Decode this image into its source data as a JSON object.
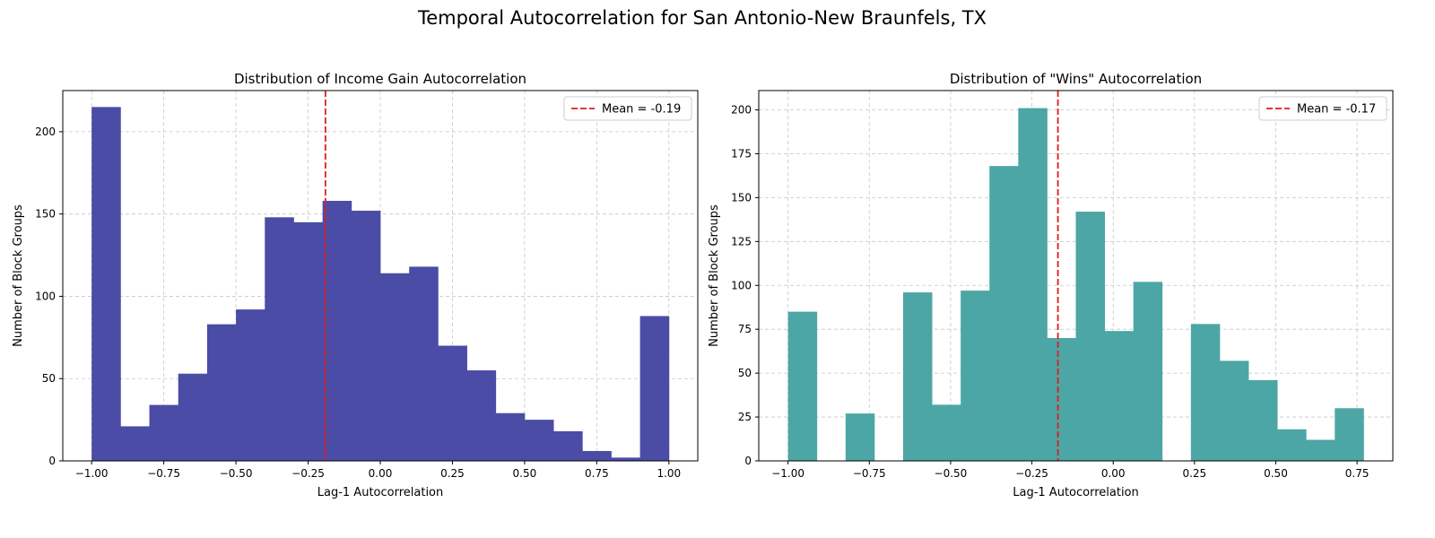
{
  "figure": {
    "suptitle": "Temporal Autocorrelation for San Antonio-New Braunfels, TX"
  },
  "chart_data": [
    {
      "type": "histogram",
      "title": "Distribution of Income Gain Autocorrelation",
      "xlabel": "Lag-1 Autocorrelation",
      "ylabel": "Number of Block Groups",
      "xlim": [
        -1.1,
        1.1
      ],
      "ylim": [
        0,
        225
      ],
      "xticks": [
        -1.0,
        -0.75,
        -0.5,
        -0.25,
        0.0,
        0.25,
        0.5,
        0.75,
        1.0
      ],
      "xtick_labels": [
        "−1.00",
        "−0.75",
        "−0.50",
        "−0.25",
        "0.00",
        "0.25",
        "0.50",
        "0.75",
        "1.00"
      ],
      "yticks": [
        0,
        50,
        100,
        150,
        200
      ],
      "ytick_labels": [
        "0",
        "50",
        "100",
        "150",
        "200"
      ],
      "bin_edges": [
        -1.0,
        -0.9,
        -0.8,
        -0.7,
        -0.6,
        -0.5,
        -0.4,
        -0.3,
        -0.2,
        -0.1,
        0.0,
        0.1,
        0.2,
        0.3,
        0.4,
        0.5,
        0.6,
        0.7,
        0.8,
        0.9,
        1.0
      ],
      "counts": [
        215,
        21,
        34,
        53,
        83,
        92,
        148,
        145,
        158,
        152,
        114,
        118,
        70,
        55,
        29,
        25,
        18,
        6,
        2,
        88
      ],
      "bar_color": "#4b4ca6",
      "mean_value": -0.19,
      "mean_line_color": "#e41a1c",
      "legend_label": "Mean = -0.19",
      "legend_position": "upper right",
      "grid": true
    },
    {
      "type": "histogram",
      "title": "Distribution of \"Wins\" Autocorrelation",
      "xlabel": "Lag-1 Autocorrelation",
      "ylabel": "Number of Block Groups",
      "xlim": [
        -1.09,
        0.86
      ],
      "ylim": [
        0,
        211
      ],
      "xticks": [
        -1.0,
        -0.75,
        -0.5,
        -0.25,
        0.0,
        0.25,
        0.5,
        0.75
      ],
      "xtick_labels": [
        "−1.00",
        "−0.75",
        "−0.50",
        "−0.25",
        "0.00",
        "0.25",
        "0.50",
        "0.75"
      ],
      "yticks": [
        0,
        25,
        50,
        75,
        100,
        125,
        150,
        175,
        200
      ],
      "ytick_labels": [
        "0",
        "25",
        "50",
        "75",
        "100",
        "125",
        "150",
        "175",
        "200"
      ],
      "bin_edges": [
        -1.0,
        -0.9115,
        -0.823,
        -0.7345,
        -0.646,
        -0.5575,
        -0.469,
        -0.3805,
        -0.292,
        -0.2035,
        -0.115,
        -0.0265,
        0.062,
        0.1505,
        0.239,
        0.3275,
        0.416,
        0.5045,
        0.593,
        0.6815,
        0.77
      ],
      "counts": [
        85,
        0,
        27,
        0,
        96,
        32,
        97,
        168,
        201,
        70,
        142,
        74,
        102,
        0,
        78,
        57,
        46,
        18,
        12,
        30
      ],
      "bar_color": "#4ca6a6",
      "mean_value": -0.17,
      "mean_line_color": "#e41a1c",
      "legend_label": "Mean = -0.17",
      "legend_position": "upper right",
      "grid": true
    }
  ]
}
